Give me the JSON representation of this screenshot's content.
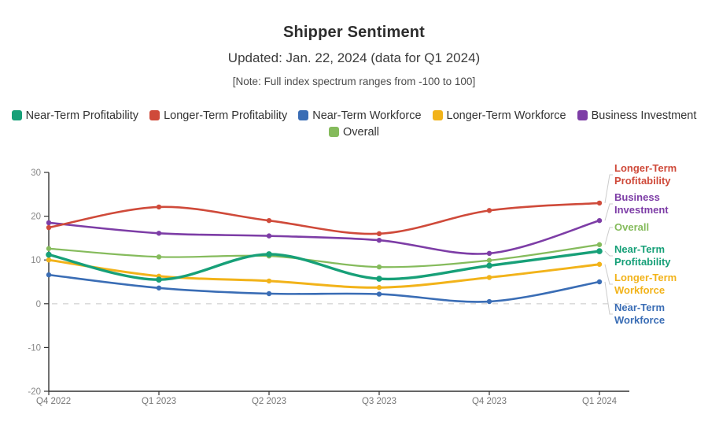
{
  "header": {
    "title": "Shipper Sentiment",
    "subtitle": "Updated: Jan. 22, 2024 (data for Q1 2024)",
    "note": "[Note: Full index spectrum ranges from -100 to 100]"
  },
  "legend": {
    "items": [
      {
        "label": "Near-Term Profitability",
        "color": "#17a078"
      },
      {
        "label": "Longer-Term Profitability",
        "color": "#cf4a3a"
      },
      {
        "label": "Near-Term Workforce",
        "color": "#3a6db5"
      },
      {
        "label": "Longer-Term Workforce",
        "color": "#f2b31a"
      },
      {
        "label": "Business Investment",
        "color": "#7d3da6"
      },
      {
        "label": "Overall",
        "color": "#85bb5c"
      }
    ]
  },
  "chart_data": {
    "type": "line",
    "title": "Shipper Sentiment",
    "categories": [
      "Q4 2022",
      "Q1 2023",
      "Q2 2023",
      "Q3 2023",
      "Q4 2023",
      "Q1 2024"
    ],
    "ylim": [
      -20,
      30
    ],
    "yticks": [
      30,
      20,
      10,
      0,
      -10,
      -20
    ],
    "grid": "zero-line-dashed-only",
    "legend_position": "top-and-right-edge",
    "series": [
      {
        "name": "Overall",
        "color": "#85bb5c",
        "width": 2.2,
        "values": [
          12.6,
          10.7,
          10.9,
          8.4,
          9.9,
          13.5
        ]
      },
      {
        "name": "Longer-Term Workforce",
        "color": "#f2b31a",
        "width": 3.0,
        "values": [
          10.0,
          6.3,
          5.2,
          3.7,
          6.0,
          9.0
        ]
      },
      {
        "name": "Near-Term Workforce",
        "color": "#3a6db5",
        "width": 2.6,
        "values": [
          6.6,
          3.6,
          2.3,
          2.2,
          0.5,
          5.0
        ]
      },
      {
        "name": "Business Investment",
        "color": "#7d3da6",
        "width": 2.6,
        "values": [
          18.5,
          16.1,
          15.5,
          14.5,
          11.5,
          19.0
        ]
      },
      {
        "name": "Longer-Term Profitability",
        "color": "#cf4a3a",
        "width": 2.6,
        "values": [
          17.4,
          22.1,
          19.0,
          16.0,
          21.3,
          23.0
        ]
      },
      {
        "name": "Near-Term Profitability",
        "color": "#17a078",
        "width": 3.4,
        "values": [
          11.2,
          5.5,
          11.3,
          5.7,
          8.7,
          12.0
        ]
      }
    ],
    "right_labels": [
      {
        "series": "Longer-Term Profitability",
        "lines": [
          "Longer-Term",
          "Profitability"
        ],
        "color": "#cf4a3a"
      },
      {
        "series": "Business Investment",
        "lines": [
          "Business",
          "Investment"
        ],
        "color": "#7d3da6"
      },
      {
        "series": "Overall",
        "lines": [
          "Overall"
        ],
        "color": "#85bb5c"
      },
      {
        "series": "Near-Term Profitability",
        "lines": [
          "Near-Term",
          "Profitability"
        ],
        "color": "#17a078"
      },
      {
        "series": "Longer-Term Workforce",
        "lines": [
          "Longer-Term",
          "Workforce"
        ],
        "color": "#f2b31a"
      },
      {
        "series": "Near-Term Workforce",
        "lines": [
          "Near-Term",
          "Workforce"
        ],
        "color": "#3a6db5"
      }
    ]
  },
  "style": {
    "axis_line_color": "#333333",
    "tick_label_color": "#888888",
    "x_label_color": "#777777",
    "zero_line_color": "#d6d6d6"
  }
}
